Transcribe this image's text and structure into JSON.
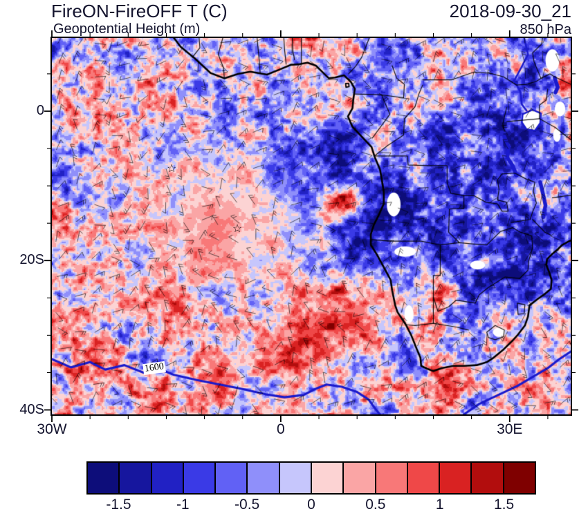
{
  "header": {
    "title": "FireON-FireOFF T (C)",
    "subtitle": "Geopotential Height (m)",
    "datetime": "2018-09-30_21",
    "level": "850 hPa"
  },
  "axes": {
    "x": {
      "labels": [
        {
          "text": "30W",
          "lon": -30
        },
        {
          "text": "0",
          "lon": 0
        },
        {
          "text": "30E",
          "lon": 30
        }
      ],
      "minor_step": 5
    },
    "y": {
      "labels": [
        {
          "text": "0",
          "lat": 0
        },
        {
          "text": "20S",
          "lat": -20
        },
        {
          "text": "40S",
          "lat": -40
        }
      ],
      "minor_step": 5
    }
  },
  "chart_data": {
    "type": "heatmap",
    "title": "FireON-FireOFF T (C)",
    "overlay_field": "Geopotential Height (m)",
    "valid_time": "2018-09-30_21",
    "pressure_level": "850 hPa",
    "lon_range": [
      -30,
      38
    ],
    "lat_range": [
      -40.6,
      9.8
    ],
    "colorbar": {
      "boundary_labels": [
        "-1.5",
        "-1",
        "-0.5",
        "0",
        "0.5",
        "1",
        "1.5"
      ],
      "levels": [
        -1.5,
        -1.25,
        -1,
        -0.75,
        -0.5,
        -0.25,
        0,
        0.25,
        0.5,
        0.75,
        1,
        1.25,
        1.5
      ],
      "colors": [
        "#0d0d7a",
        "#16169e",
        "#2121c4",
        "#3a3ae6",
        "#6161f5",
        "#8f8ffa",
        "#c6c6fc",
        "#fcd3d3",
        "#faa5a5",
        "#f87878",
        "#ef4848",
        "#d92222",
        "#b20d0d",
        "#7f0000"
      ]
    },
    "height_contours": {
      "label": "1600",
      "value": 1600,
      "color": "#1a1acc",
      "label_pos": [
        -16.6,
        -34.4
      ]
    },
    "markers": [
      {
        "name": "ascension-island-star",
        "lon": -14.3,
        "lat": -7.9,
        "symbol": "☆"
      },
      {
        "name": "st-helena-star",
        "lon": -5.7,
        "lat": -15.9,
        "symbol": "☆"
      }
    ],
    "anomaly_features": [
      {
        "label": "cool core southern Africa",
        "lon": 21,
        "lat": -15,
        "sx": 9,
        "sy": 7.5,
        "rot": 0,
        "amp": -1.15
      },
      {
        "label": "cool band Mozambique coast",
        "lon": 31,
        "lat": -23,
        "sx": 5,
        "sy": 6,
        "rot": 15,
        "amp": -0.85
      },
      {
        "label": "cool swirl Gulf of Guinea",
        "lon": 5.5,
        "lat": -6.5,
        "sx": 5,
        "sy": 3.2,
        "rot": -35,
        "amp": -0.95
      },
      {
        "label": "smooth warm pool central South Atlantic",
        "lon": -8,
        "lat": -15,
        "sx": 8.5,
        "sy": 6.5,
        "rot": 0,
        "amp": 0.5,
        "damp": 0.78
      },
      {
        "label": "warm streak band SE Atlantic",
        "lon": 3,
        "lat": -30,
        "sx": 11,
        "sy": 3.6,
        "rot": -28,
        "amp": 0.7,
        "damp": 0.35
      },
      {
        "label": "warm maximum off Angola",
        "lon": 7.5,
        "lat": -12.5,
        "sx": 2.1,
        "sy": 1.5,
        "rot": -40,
        "amp": 1.7
      },
      {
        "label": "cool East Africa",
        "lon": 34.5,
        "lat": 2,
        "sx": 5,
        "sy": 5,
        "rot": 0,
        "amp": -0.65
      },
      {
        "label": "warm patch NW corner",
        "lon": -25,
        "lat": 4,
        "sx": 4,
        "sy": 3.2,
        "rot": 0,
        "amp": 0.55
      },
      {
        "label": "warm band south of South Africa",
        "lon": 24,
        "lat": -36.5,
        "sx": 7,
        "sy": 2.5,
        "rot": -10,
        "amp": 0.45
      }
    ]
  },
  "basemap": {
    "coast": [
      [
        -14.0,
        9.8
      ],
      [
        -13.1,
        8.6
      ],
      [
        -11.3,
        7.1
      ],
      [
        -9.2,
        5.1
      ],
      [
        -7.4,
        4.4
      ],
      [
        -5.6,
        5.0
      ],
      [
        -4.0,
        5.3
      ],
      [
        -1.8,
        4.9
      ],
      [
        -0.1,
        5.6
      ],
      [
        1.3,
        6.2
      ],
      [
        2.5,
        6.3
      ],
      [
        3.5,
        6.5
      ],
      [
        4.6,
        6.1
      ],
      [
        5.4,
        5.3
      ],
      [
        6.3,
        4.4
      ],
      [
        7.1,
        4.5
      ],
      [
        8.3,
        4.8
      ],
      [
        9.2,
        3.9
      ],
      [
        9.7,
        3.0
      ],
      [
        9.5,
        1.5
      ],
      [
        9.4,
        0.4
      ],
      [
        8.8,
        -0.7
      ],
      [
        9.4,
        -2.1
      ],
      [
        10.7,
        -3.5
      ],
      [
        11.9,
        -4.8
      ],
      [
        12.3,
        -6.1
      ],
      [
        13.0,
        -7.8
      ],
      [
        13.2,
        -8.9
      ],
      [
        13.5,
        -10.8
      ],
      [
        13.5,
        -12.4
      ],
      [
        12.8,
        -14.0
      ],
      [
        12.2,
        -15.2
      ],
      [
        11.8,
        -16.5
      ],
      [
        11.8,
        -17.9
      ],
      [
        12.6,
        -19.2
      ],
      [
        13.5,
        -20.9
      ],
      [
        14.4,
        -22.6
      ],
      [
        14.6,
        -24.0
      ],
      [
        15.0,
        -26.0
      ],
      [
        15.3,
        -26.9
      ],
      [
        16.4,
        -28.6
      ],
      [
        17.1,
        -30.0
      ],
      [
        17.8,
        -31.8
      ],
      [
        18.3,
        -33.0
      ],
      [
        18.4,
        -34.1
      ],
      [
        19.2,
        -34.5
      ],
      [
        20.0,
        -34.8
      ],
      [
        21.1,
        -34.4
      ],
      [
        22.6,
        -34.1
      ],
      [
        24.0,
        -34.1
      ],
      [
        25.7,
        -34.0
      ],
      [
        27.0,
        -33.6
      ],
      [
        27.9,
        -33.0
      ],
      [
        29.2,
        -31.9
      ],
      [
        30.3,
        -30.8
      ],
      [
        31.1,
        -29.9
      ],
      [
        32.0,
        -28.7
      ],
      [
        32.4,
        -27.5
      ],
      [
        32.6,
        -26.0
      ],
      [
        33.6,
        -25.2
      ],
      [
        34.7,
        -24.4
      ],
      [
        35.4,
        -23.8
      ],
      [
        35.5,
        -22.6
      ],
      [
        35.2,
        -21.6
      ],
      [
        34.8,
        -20.6
      ],
      [
        34.9,
        -19.8
      ],
      [
        35.5,
        -19.2
      ],
      [
        36.3,
        -18.5
      ],
      [
        36.9,
        -17.9
      ],
      [
        37.8,
        -17.4
      ],
      [
        38.3,
        -17.2
      ]
    ],
    "islands": [
      [
        [
          8.5,
          3.7
        ],
        [
          8.9,
          3.7
        ],
        [
          8.95,
          3.3
        ],
        [
          8.55,
          3.2
        ],
        [
          8.5,
          3.7
        ]
      ]
    ],
    "borders": [
      [
        [
          -10.7,
          9.8
        ],
        [
          -10.6,
          8.5
        ],
        [
          -11.6,
          7.2
        ]
      ],
      [
        [
          -7.6,
          9.8
        ],
        [
          -8.2,
          7.6
        ],
        [
          -7.5,
          5.8
        ],
        [
          -7.4,
          4.4
        ]
      ],
      [
        [
          -3.1,
          9.8
        ],
        [
          -2.9,
          7.6
        ],
        [
          -2.7,
          5.1
        ]
      ],
      [
        [
          0.4,
          9.8
        ],
        [
          0.5,
          8.2
        ],
        [
          0.7,
          6.3
        ]
      ],
      [
        [
          1.5,
          9.8
        ],
        [
          1.6,
          8.0
        ],
        [
          1.8,
          6.9
        ]
      ],
      [
        [
          2.7,
          9.8
        ],
        [
          2.7,
          8.0
        ],
        [
          2.7,
          6.4
        ]
      ],
      [
        [
          11.6,
          9.8
        ],
        [
          10.6,
          7.2
        ],
        [
          9.8,
          6.0
        ],
        [
          8.9,
          5.0
        ]
      ],
      [
        [
          14.6,
          6.1
        ],
        [
          15.2,
          4.4
        ],
        [
          16.2,
          3.6
        ],
        [
          16.1,
          1.8
        ]
      ],
      [
        [
          9.7,
          2.3
        ],
        [
          13.0,
          2.2
        ],
        [
          16.1,
          1.8
        ]
      ],
      [
        [
          13.2,
          2.2
        ],
        [
          14.3,
          -0.4
        ],
        [
          12.0,
          -3.6
        ]
      ],
      [
        [
          12.4,
          -5.9
        ],
        [
          14.0,
          -4.6
        ],
        [
          16.1,
          -3.2
        ],
        [
          16.2,
          -1.0
        ],
        [
          17.6,
          0.6
        ],
        [
          18.1,
          2.3
        ],
        [
          18.6,
          3.5
        ]
      ],
      [
        [
          18.6,
          4.2
        ],
        [
          22.4,
          4.2
        ],
        [
          25.2,
          5.2
        ],
        [
          27.4,
          5.1
        ]
      ],
      [
        [
          27.4,
          5.1
        ],
        [
          29.2,
          4.6
        ],
        [
          30.9,
          3.5
        ],
        [
          32.2,
          3.6
        ],
        [
          33.5,
          4.0
        ],
        [
          34.1,
          4.4
        ],
        [
          35.3,
          5.0
        ],
        [
          35.9,
          4.6
        ],
        [
          38.0,
          3.6
        ]
      ],
      [
        [
          34.1,
          4.4
        ],
        [
          33.2,
          6.6
        ],
        [
          33.0,
          7.8
        ],
        [
          34.2,
          9.0
        ],
        [
          34.3,
          9.8
        ]
      ],
      [
        [
          12.4,
          -6.0
        ],
        [
          16.6,
          -6.0
        ],
        [
          16.7,
          -7.2
        ],
        [
          19.4,
          -7.3
        ],
        [
          21.8,
          -7.3
        ],
        [
          21.8,
          -9.6
        ],
        [
          22.3,
          -11.0
        ],
        [
          24.0,
          -11.3
        ]
      ],
      [
        [
          24.0,
          -11.3
        ],
        [
          24.0,
          -13.0
        ],
        [
          22.1,
          -13.1
        ],
        [
          22.0,
          -16.2
        ],
        [
          23.4,
          -17.6
        ]
      ],
      [
        [
          11.8,
          -17.2
        ],
        [
          14.2,
          -17.4
        ],
        [
          18.4,
          -17.4
        ],
        [
          20.8,
          -17.9
        ],
        [
          23.4,
          -17.6
        ],
        [
          25.3,
          -17.8
        ]
      ],
      [
        [
          25.3,
          -17.8
        ],
        [
          27.0,
          -17.9
        ],
        [
          28.8,
          -16.1
        ],
        [
          30.4,
          -15.6
        ]
      ],
      [
        [
          30.4,
          -15.6
        ],
        [
          31.4,
          -16.2
        ],
        [
          32.9,
          -16.7
        ],
        [
          33.0,
          -18.3
        ],
        [
          32.5,
          -20.0
        ],
        [
          32.4,
          -21.3
        ],
        [
          31.3,
          -22.4
        ]
      ],
      [
        [
          31.3,
          -22.4
        ],
        [
          29.4,
          -22.2
        ],
        [
          27.2,
          -23.6
        ],
        [
          26.0,
          -24.6
        ],
        [
          25.5,
          -25.7
        ],
        [
          23.0,
          -25.3
        ],
        [
          22.0,
          -26.2
        ],
        [
          20.6,
          -26.8
        ],
        [
          20.0,
          -24.9
        ]
      ],
      [
        [
          20.9,
          -17.9
        ],
        [
          20.9,
          -22.0
        ],
        [
          20.0,
          -22.0
        ],
        [
          20.0,
          -28.4
        ]
      ],
      [
        [
          16.5,
          -28.6
        ],
        [
          17.6,
          -28.7
        ],
        [
          20.0,
          -28.4
        ],
        [
          23.0,
          -28.9
        ],
        [
          24.6,
          -29.3
        ]
      ],
      [
        [
          24.0,
          -11.3
        ],
        [
          25.3,
          -11.3
        ],
        [
          26.9,
          -12.2
        ],
        [
          28.4,
          -12.4
        ],
        [
          29.0,
          -13.4
        ],
        [
          29.8,
          -13.4
        ],
        [
          29.6,
          -12.2
        ],
        [
          28.4,
          -11.9
        ],
        [
          28.6,
          -10.5
        ],
        [
          28.4,
          -9.2
        ],
        [
          29.0,
          -8.4
        ]
      ],
      [
        [
          29.0,
          -8.4
        ],
        [
          30.7,
          -8.3
        ],
        [
          32.2,
          -9.1
        ],
        [
          33.3,
          -9.5
        ],
        [
          33.1,
          -10.7
        ],
        [
          33.5,
          -12.3
        ],
        [
          33.0,
          -13.5
        ],
        [
          32.7,
          -14.5
        ],
        [
          30.2,
          -14.9
        ]
      ],
      [
        [
          33.0,
          -14.5
        ],
        [
          34.6,
          -16.2
        ],
        [
          35.4,
          -16.6
        ]
      ],
      [
        [
          35.6,
          -11.6
        ],
        [
          38.3,
          -11.2
        ]
      ],
      [
        [
          29.6,
          -1.4
        ],
        [
          33.9,
          -1.0
        ]
      ],
      [
        [
          33.9,
          -1.0
        ],
        [
          36.0,
          -2.2
        ],
        [
          37.6,
          -3.5
        ],
        [
          38.3,
          -4.0
        ]
      ],
      [
        [
          33.9,
          -1.0
        ],
        [
          33.9,
          0.8
        ],
        [
          34.8,
          1.5
        ],
        [
          35.0,
          3.0
        ]
      ],
      [
        [
          29.6,
          0.5
        ],
        [
          29.1,
          -1.7
        ],
        [
          29.3,
          -2.7
        ]
      ],
      [
        [
          27.0,
          -29.6
        ],
        [
          28.1,
          -28.7
        ],
        [
          29.3,
          -29.3
        ],
        [
          29.2,
          -30.2
        ],
        [
          28.1,
          -30.6
        ],
        [
          27.2,
          -30.3
        ],
        [
          27.0,
          -29.6
        ]
      ],
      [
        [
          31.0,
          -25.7
        ],
        [
          32.0,
          -25.9
        ],
        [
          31.9,
          -27.1
        ],
        [
          31.1,
          -27.2
        ],
        [
          31.0,
          -25.7
        ]
      ]
    ],
    "rivers": [
      [
        [
          31.9,
          9.8
        ],
        [
          32.4,
          7.6
        ],
        [
          31.5,
          5.8
        ],
        [
          30.6,
          4.1
        ],
        [
          31.4,
          2.6
        ],
        [
          31.6,
          0.9
        ],
        [
          32.2,
          0.1
        ]
      ]
    ],
    "lake_polygons": [
      [
        [
          31.7,
          -0.4
        ],
        [
          33.0,
          0.2
        ],
        [
          34.1,
          -0.3
        ],
        [
          34.0,
          -1.6
        ],
        [
          33.3,
          -2.6
        ],
        [
          32.2,
          -2.4
        ],
        [
          31.6,
          -1.5
        ],
        [
          31.7,
          -0.4
        ]
      ]
    ],
    "ribbon_lakes": [
      [
        [
          29.3,
          -3.4
        ],
        [
          29.8,
          -4.8
        ],
        [
          29.7,
          -6.2
        ],
        [
          30.4,
          -7.3
        ],
        [
          30.9,
          -8.6
        ]
      ],
      [
        [
          34.0,
          -9.5
        ],
        [
          34.4,
          -11.2
        ],
        [
          34.7,
          -12.6
        ],
        [
          34.4,
          -14.2
        ]
      ],
      [
        [
          35.9,
          4.5
        ],
        [
          36.3,
          3.2
        ],
        [
          36.0,
          2.5
        ]
      ]
    ],
    "white_patches": [
      {
        "c": [
          14.8,
          -12.5
        ],
        "rx": 0.9,
        "ry": 1.6
      },
      {
        "c": [
          16.3,
          -18.8
        ],
        "rx": 1.4,
        "ry": 0.7
      },
      {
        "c": [
          16.8,
          -27.2
        ],
        "rx": 0.6,
        "ry": 1.2
      },
      {
        "c": [
          25.8,
          -20.6
        ],
        "rx": 1.0,
        "ry": 0.6
      },
      {
        "c": [
          28.6,
          -29.6
        ],
        "rx": 0.8,
        "ry": 0.6
      },
      {
        "c": [
          35.6,
          6.8
        ],
        "rx": 0.9,
        "ry": 1.5
      },
      {
        "c": [
          36.6,
          0.3
        ],
        "rx": 0.7,
        "ry": 1.0
      },
      {
        "c": [
          36.2,
          -3.2
        ],
        "rx": 0.5,
        "ry": 0.9
      }
    ],
    "height_contour_lines": [
      [
        [
          -30,
          -33.2
        ],
        [
          -27.5,
          -34.3
        ],
        [
          -25,
          -33.6
        ],
        [
          -23,
          -34.6
        ],
        [
          -20.5,
          -34.0
        ],
        [
          -18,
          -35.0
        ],
        [
          -16.2,
          -34.4
        ],
        [
          -14,
          -35.3
        ],
        [
          -11,
          -36.0
        ],
        [
          -8,
          -36.6
        ],
        [
          -5,
          -37.2
        ],
        [
          -2,
          -37.9
        ],
        [
          0.5,
          -38.3
        ],
        [
          3,
          -38.0
        ],
        [
          4.5,
          -37.2
        ],
        [
          6,
          -36.6
        ],
        [
          8,
          -36.9
        ],
        [
          10,
          -37.6
        ],
        [
          11.5,
          -38.6
        ],
        [
          12.5,
          -40.0
        ],
        [
          13.0,
          -40.6
        ]
      ],
      [
        [
          24.0,
          -40.6
        ],
        [
          26.0,
          -39.2
        ],
        [
          28.5,
          -38.0
        ],
        [
          31.0,
          -36.8
        ],
        [
          33.0,
          -35.6
        ],
        [
          35.0,
          -34.4
        ],
        [
          36.5,
          -33.2
        ],
        [
          38.3,
          -32.0
        ]
      ]
    ]
  }
}
